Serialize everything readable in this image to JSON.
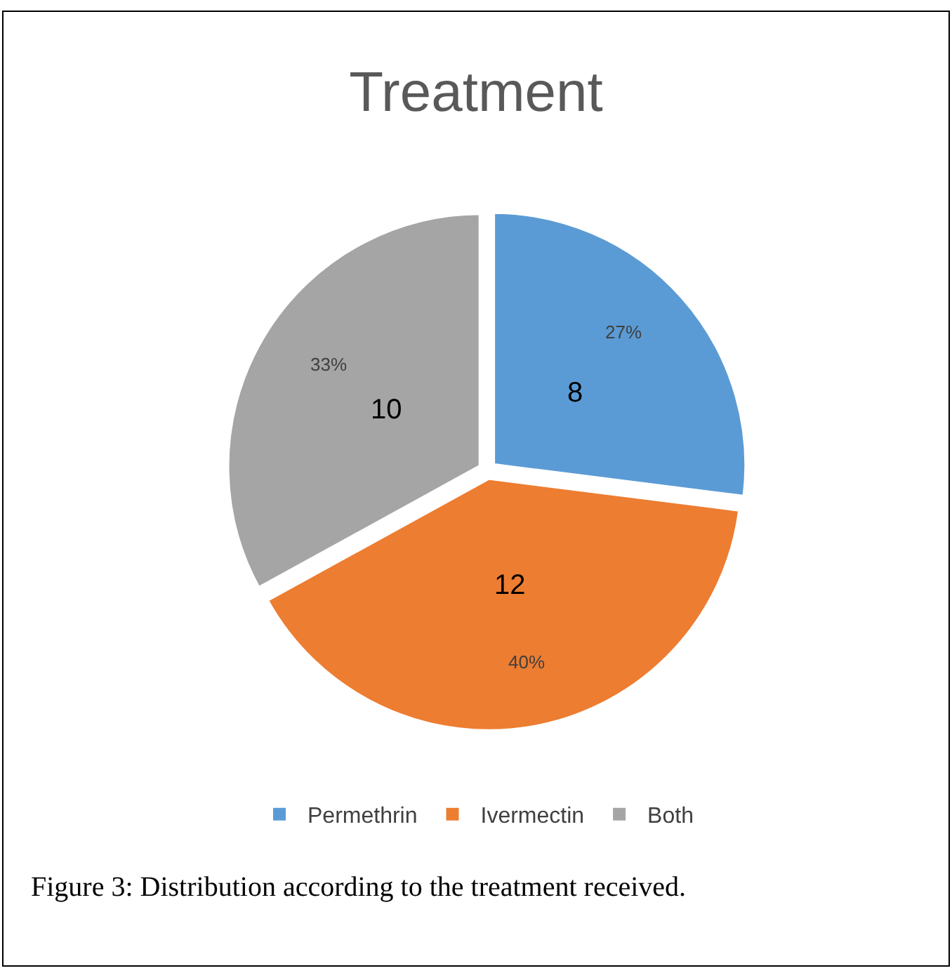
{
  "chart_data": {
    "type": "pie",
    "title": "Treatment",
    "categories": [
      "Permethrin",
      "Ivermectin",
      "Both"
    ],
    "values": [
      27,
      40,
      33
    ],
    "colors": [
      "#5b9bd5",
      "#ed7d31",
      "#a5a5a5"
    ],
    "value_labels": [
      "27%",
      "40%",
      "33%"
    ],
    "legend": "bottom",
    "annotations": [
      {
        "text": "8",
        "x": "Permethrin"
      },
      {
        "text": "12",
        "x": "Ivermectin"
      },
      {
        "text": "10",
        "x": "Both"
      },
      "Figure 3: Distribution according to the treatment received."
    ]
  }
}
